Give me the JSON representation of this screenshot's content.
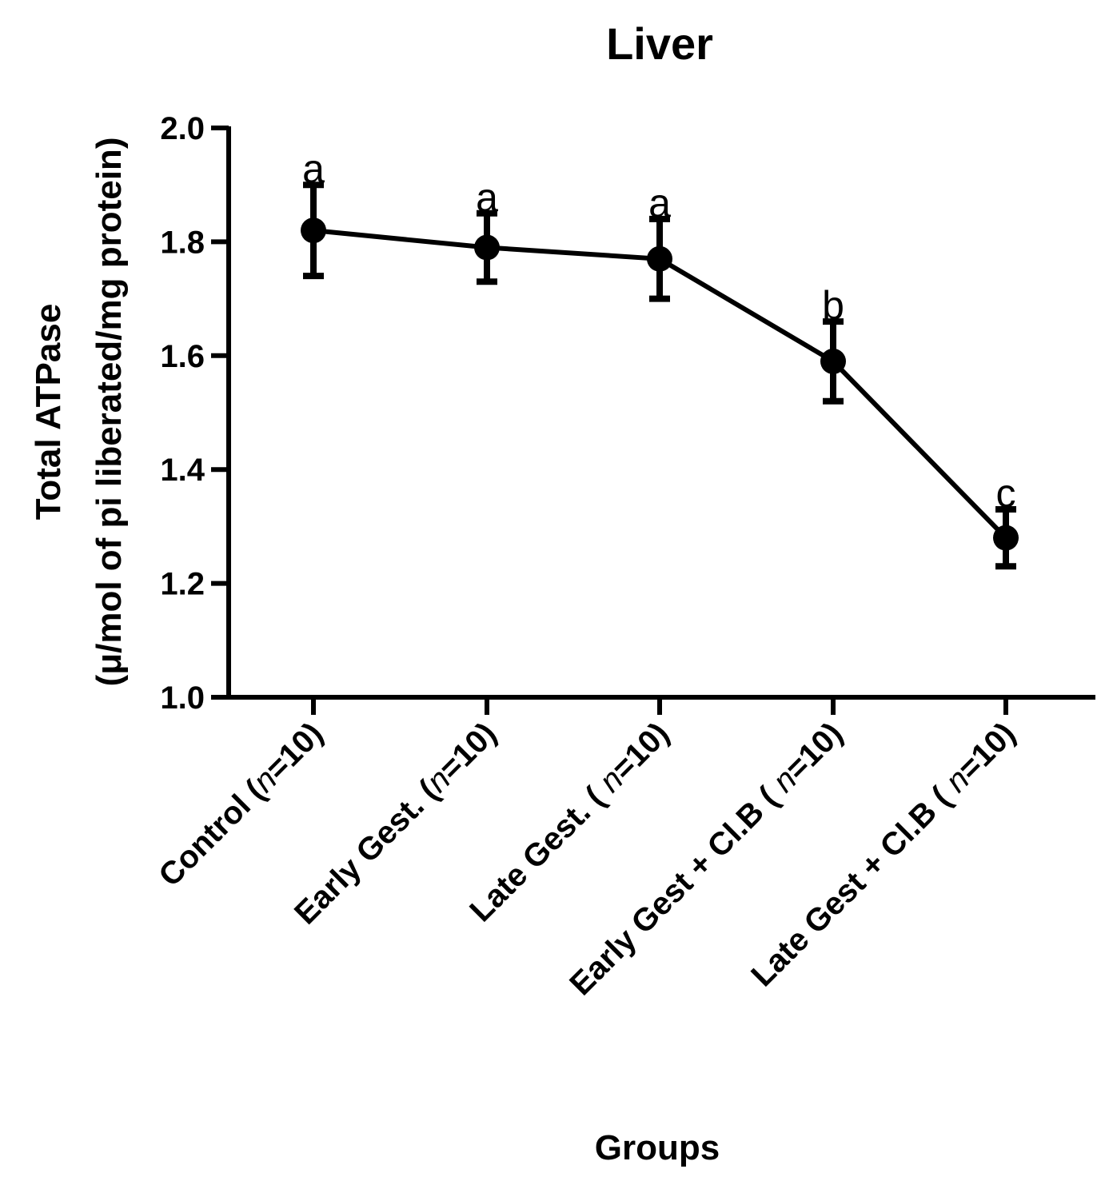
{
  "chart_data": {
    "type": "line",
    "title": "Liver",
    "ylabel_line1": "Total ATPase",
    "ylabel_line2": "(μ/mol of pi liberated/mg protein)",
    "xlabel": "Groups",
    "ylim": [
      1.0,
      2.0
    ],
    "yticks": [
      "1.0",
      "1.2",
      "1.4",
      "1.6",
      "1.8",
      "2.0"
    ],
    "categories": [
      {
        "pre": "Control (",
        "n": "n",
        "post": "=10)"
      },
      {
        "pre": "Early Gest. (",
        "n": "n",
        "post": "=10)"
      },
      {
        "pre": "Late Gest. ( ",
        "n": "n",
        "post": "=10)"
      },
      {
        "pre": "Early Gest + Cl.B ( ",
        "n": "n",
        "post": "=10)"
      },
      {
        "pre": "Late Gest + Cl.B ( ",
        "n": "n",
        "post": "=10)"
      }
    ],
    "series": [
      {
        "name": "Total ATPase",
        "values": [
          1.82,
          1.79,
          1.77,
          1.59,
          1.28
        ],
        "errors": [
          0.08,
          0.06,
          0.07,
          0.07,
          0.05
        ],
        "significance": [
          "a",
          "a",
          "a",
          "b",
          "c"
        ]
      }
    ],
    "grid": false,
    "color": "#000000"
  }
}
